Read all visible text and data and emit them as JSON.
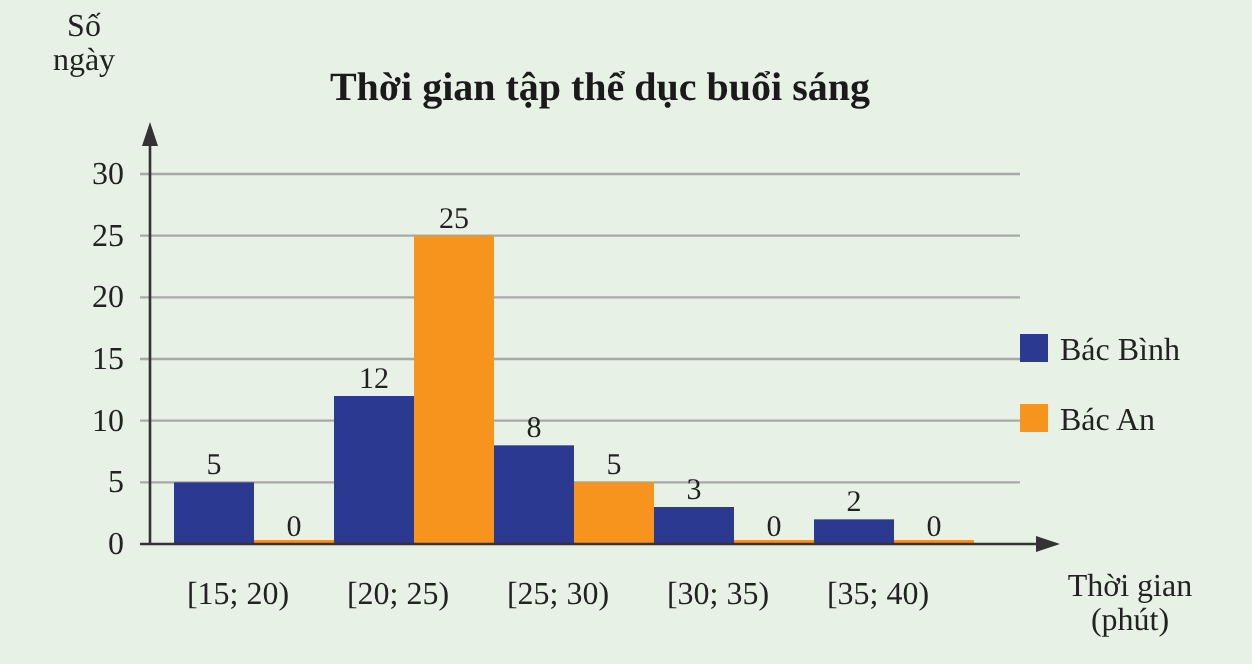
{
  "chart_data": {
    "type": "bar",
    "title": "Thời gian tập thể dục buổi sáng",
    "ylabel": "Số ngày",
    "xlabel": "Thời gian (phút)",
    "categories": [
      "[15; 20)",
      "[20; 25)",
      "[25; 30)",
      "[30; 35)",
      "[35; 40)"
    ],
    "series": [
      {
        "name": "Bác Bình",
        "color": "#2b3990",
        "values": [
          5,
          12,
          8,
          3,
          2
        ]
      },
      {
        "name": "Bác An",
        "color": "#f7941d",
        "values": [
          0,
          25,
          5,
          0,
          0
        ]
      }
    ],
    "ylim": [
      0,
      30
    ],
    "yticks": [
      0,
      5,
      10,
      15,
      20,
      25,
      30
    ],
    "grid": "y",
    "legend": "right",
    "data_labels": true
  }
}
